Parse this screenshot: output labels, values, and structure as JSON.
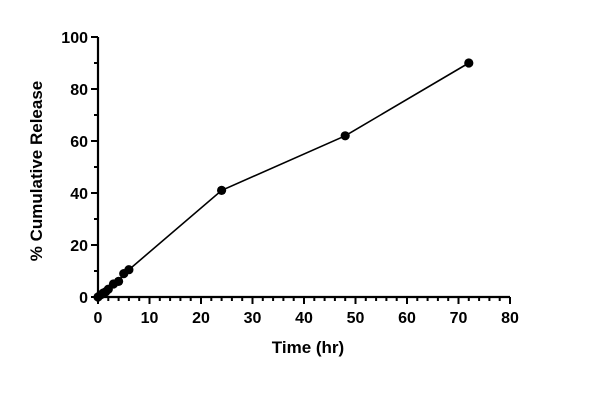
{
  "chart_data": {
    "type": "line",
    "title": "",
    "xlabel": "Time (hr)",
    "ylabel": "% Cumulative Release",
    "xlim": [
      0,
      80
    ],
    "ylim": [
      0,
      100
    ],
    "xticks": [
      0,
      10,
      20,
      30,
      40,
      50,
      60,
      70,
      80
    ],
    "yticks": [
      0,
      20,
      40,
      60,
      80,
      100
    ],
    "x_minor_step": 2,
    "y_minor_step": 10,
    "grid": false,
    "legend": "none",
    "series": [
      {
        "x": [
          0,
          0.5,
          1,
          1.5,
          2,
          3,
          4,
          5,
          6,
          24,
          48,
          72
        ],
        "y": [
          0,
          0.8,
          1.5,
          2,
          3,
          5,
          6,
          9,
          10.5,
          41,
          62,
          90
        ],
        "color": "#000000",
        "marker": "circle"
      }
    ]
  }
}
